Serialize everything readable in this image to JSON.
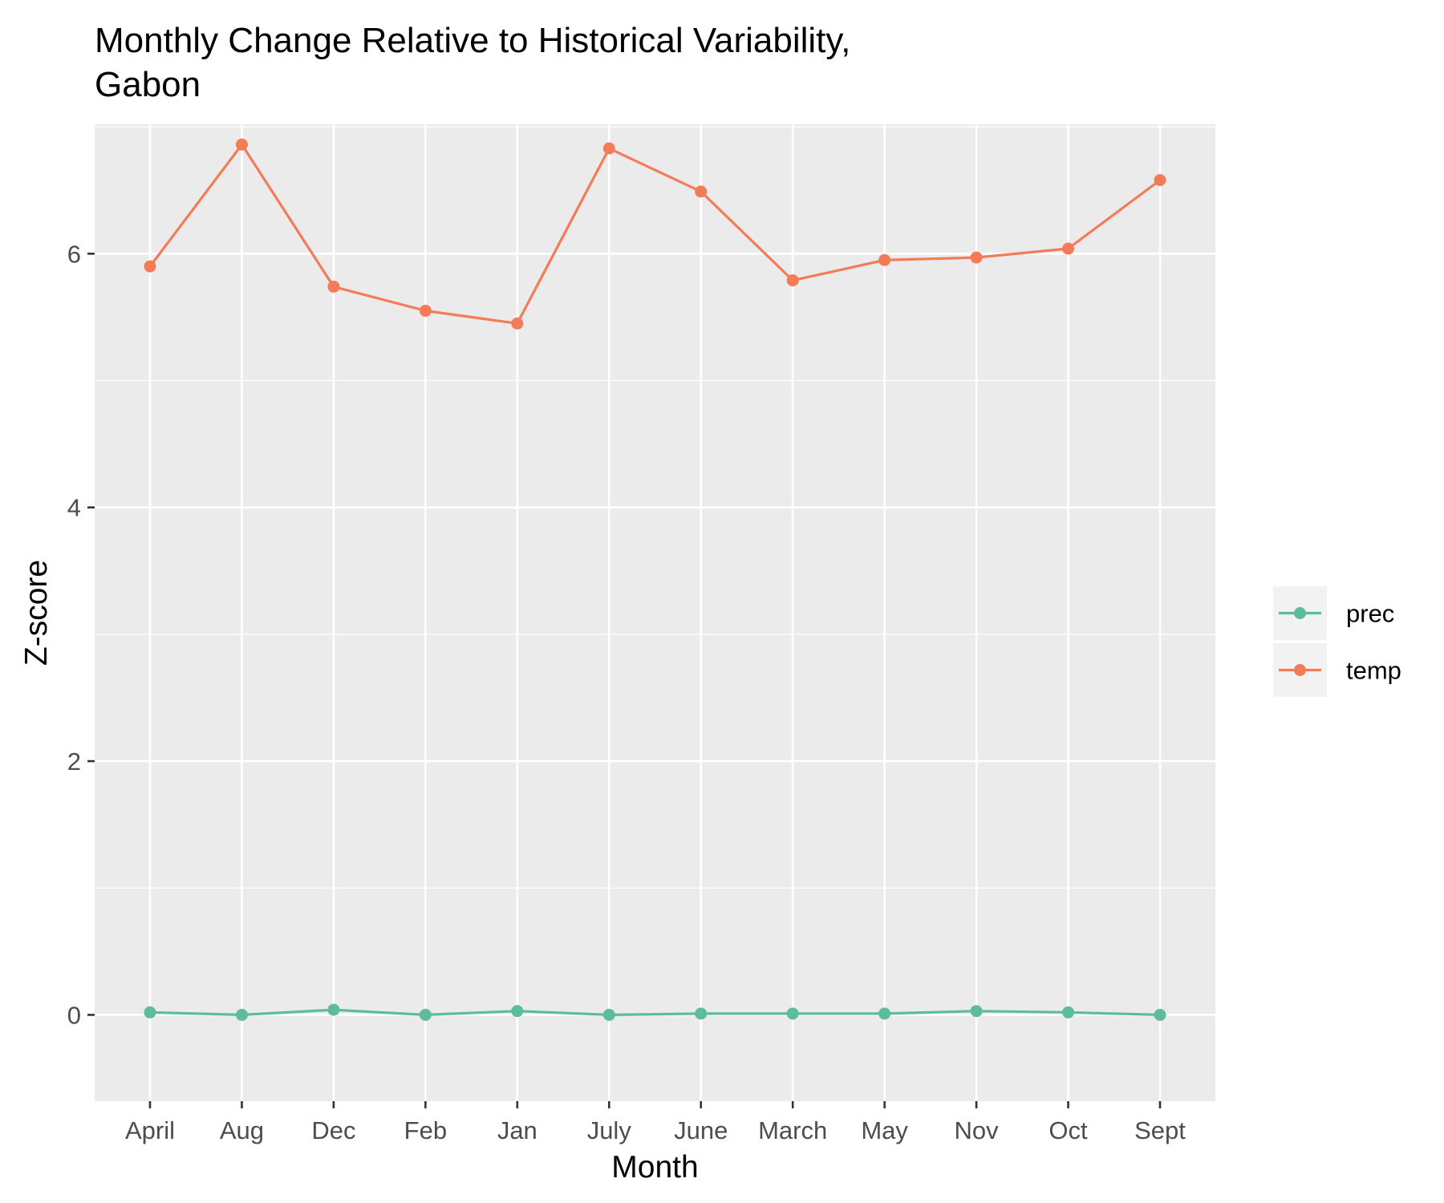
{
  "chart_data": {
    "type": "line",
    "title_lines": [
      "Monthly Change Relative to Historical Variability,",
      "Gabon"
    ],
    "xlabel": "Month",
    "ylabel": "Z-score",
    "categories": [
      "April",
      "Aug",
      "Dec",
      "Feb",
      "Jan",
      "July",
      "June",
      "March",
      "May",
      "Nov",
      "Oct",
      "Sept"
    ],
    "ylim": [
      -0.68,
      7.02
    ],
    "yticks": [
      0,
      2,
      4,
      6
    ],
    "ytick_labels": [
      "0",
      "2",
      "4",
      "6"
    ],
    "grid": true,
    "legend_position": "right",
    "series": [
      {
        "name": "prec",
        "color": "#5dbd9a",
        "values": [
          0.02,
          0.0,
          0.04,
          0.0,
          0.03,
          0.0,
          0.01,
          0.01,
          0.01,
          0.03,
          0.02,
          0.0
        ]
      },
      {
        "name": "temp",
        "color": "#f47b57",
        "values": [
          5.9,
          6.86,
          5.74,
          5.55,
          5.45,
          6.83,
          6.49,
          5.79,
          5.95,
          5.97,
          6.04,
          6.58
        ]
      }
    ]
  }
}
